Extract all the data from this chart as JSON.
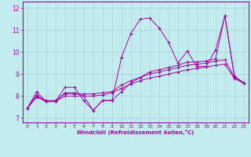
{
  "xlabel": "Windchill (Refroidissement éolien,°C)",
  "background_color": "#c2ecee",
  "grid_color": "#aad8da",
  "line_color": "#aa00aa",
  "xlim": [
    -0.5,
    23.5
  ],
  "ylim": [
    6.8,
    12.3
  ],
  "yticks": [
    7,
    8,
    9,
    10,
    11,
    12
  ],
  "xticks": [
    0,
    1,
    2,
    3,
    4,
    5,
    6,
    7,
    8,
    9,
    10,
    11,
    12,
    13,
    14,
    15,
    16,
    17,
    18,
    19,
    20,
    21,
    22,
    23
  ],
  "lines": [
    {
      "x": [
        0,
        1,
        2,
        3,
        4,
        5,
        6,
        7,
        8,
        9,
        10,
        11,
        12,
        13,
        14,
        15,
        16,
        17,
        18,
        19,
        20,
        21,
        22,
        23
      ],
      "y": [
        7.45,
        8.2,
        7.75,
        7.75,
        8.4,
        8.4,
        7.8,
        7.35,
        7.8,
        7.8,
        9.75,
        10.85,
        11.5,
        11.55,
        11.1,
        10.45,
        9.5,
        10.05,
        9.35,
        9.35,
        10.1,
        11.65,
        8.9,
        8.6
      ]
    },
    {
      "x": [
        0,
        1,
        2,
        3,
        4,
        5,
        6,
        7,
        8,
        9,
        10,
        11,
        12,
        13,
        14,
        15,
        16,
        17,
        18,
        19,
        20,
        21,
        22,
        23
      ],
      "y": [
        7.45,
        8.0,
        7.8,
        7.8,
        8.1,
        8.1,
        8.1,
        8.1,
        8.15,
        8.2,
        8.5,
        8.7,
        8.85,
        9.0,
        9.1,
        9.2,
        9.3,
        9.4,
        9.45,
        9.5,
        9.6,
        9.65,
        8.85,
        8.6
      ]
    },
    {
      "x": [
        0,
        1,
        2,
        3,
        4,
        5,
        6,
        7,
        8,
        9,
        10,
        11,
        12,
        13,
        14,
        15,
        16,
        17,
        18,
        19,
        20,
        21,
        22,
        23
      ],
      "y": [
        7.45,
        7.95,
        7.75,
        7.75,
        8.0,
        8.0,
        8.0,
        8.0,
        8.05,
        8.15,
        8.35,
        8.55,
        8.7,
        8.82,
        8.9,
        9.0,
        9.1,
        9.2,
        9.25,
        9.32,
        9.4,
        9.45,
        8.8,
        8.58
      ]
    },
    {
      "x": [
        0,
        1,
        2,
        3,
        4,
        5,
        6,
        7,
        8,
        9,
        10,
        11,
        12,
        13,
        14,
        15,
        16,
        17,
        18,
        19,
        20,
        21,
        22,
        23
      ],
      "y": [
        7.45,
        8.05,
        7.75,
        7.75,
        8.15,
        8.15,
        8.0,
        7.35,
        7.8,
        7.8,
        8.2,
        8.6,
        8.85,
        9.1,
        9.2,
        9.3,
        9.4,
        9.55,
        9.55,
        9.6,
        9.7,
        11.65,
        8.9,
        8.6
      ]
    }
  ]
}
